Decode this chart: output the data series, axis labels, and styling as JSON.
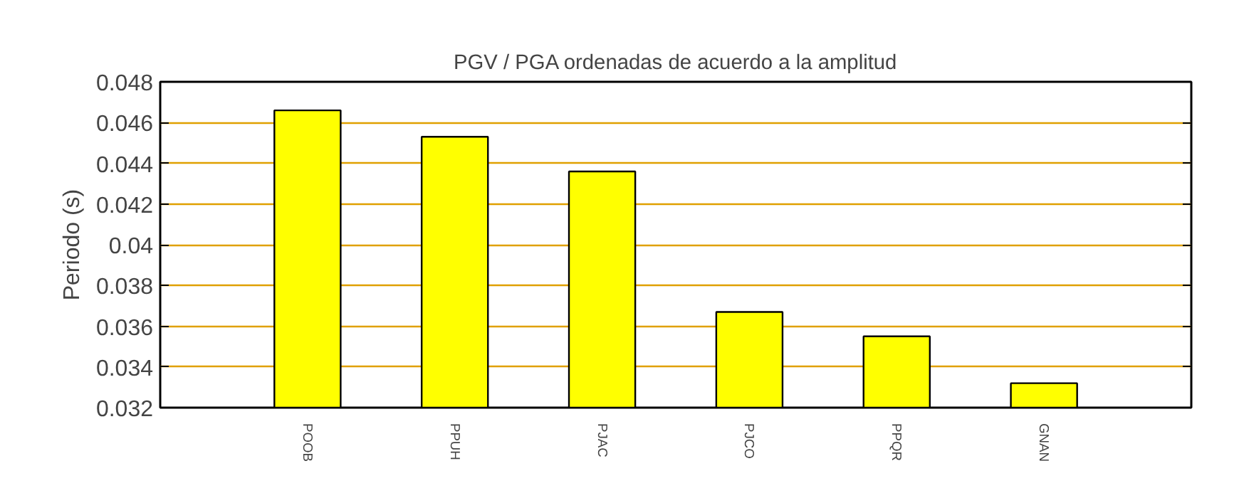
{
  "chart_data": {
    "type": "bar",
    "title": "PGV / PGA ordenadas de acuerdo a la amplitud",
    "ylabel": "Periodo (s)",
    "categories": [
      "POOB",
      "PPUH",
      "PJAC",
      "PJCO",
      "PPQR",
      "GNAN"
    ],
    "values": [
      0.0466,
      0.0453,
      0.0436,
      0.0367,
      0.0355,
      0.0332
    ],
    "color": "#ffff00",
    "ylim": [
      0.032,
      0.048
    ],
    "yticks": [
      {
        "value": 0.032,
        "label": "0.032"
      },
      {
        "value": 0.034,
        "label": "0.034"
      },
      {
        "value": 0.036,
        "label": "0.036"
      },
      {
        "value": 0.038,
        "label": "0.038"
      },
      {
        "value": 0.04,
        "label": "0.04"
      },
      {
        "value": 0.042,
        "label": "0.042"
      },
      {
        "value": 0.044,
        "label": "0.044"
      },
      {
        "value": 0.046,
        "label": "0.046"
      },
      {
        "value": 0.048,
        "label": "0.048"
      }
    ],
    "grid": "y"
  }
}
